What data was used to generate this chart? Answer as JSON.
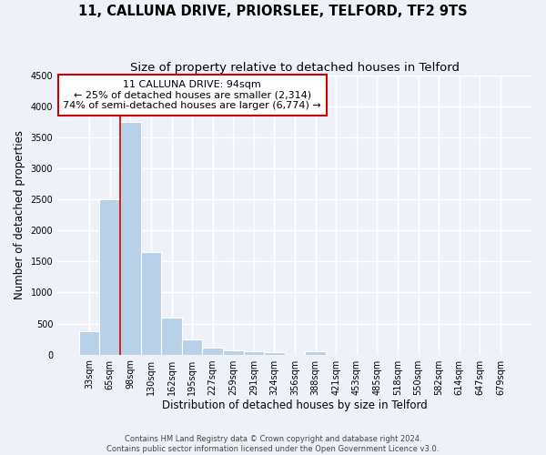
{
  "title": "11, CALLUNA DRIVE, PRIORSLEE, TELFORD, TF2 9TS",
  "subtitle": "Size of property relative to detached houses in Telford",
  "xlabel": "Distribution of detached houses by size in Telford",
  "ylabel": "Number of detached properties",
  "bin_labels": [
    "33sqm",
    "65sqm",
    "98sqm",
    "130sqm",
    "162sqm",
    "195sqm",
    "227sqm",
    "259sqm",
    "291sqm",
    "324sqm",
    "356sqm",
    "388sqm",
    "421sqm",
    "453sqm",
    "485sqm",
    "518sqm",
    "550sqm",
    "582sqm",
    "614sqm",
    "647sqm",
    "679sqm"
  ],
  "bin_values": [
    380,
    2500,
    3750,
    1650,
    600,
    240,
    110,
    60,
    55,
    45,
    0,
    50,
    0,
    0,
    0,
    0,
    0,
    0,
    0,
    0,
    0
  ],
  "bar_color": "#b8d0e8",
  "bar_edge_color": "#b8d0e8",
  "vline_color": "#cc0000",
  "vline_x_index": 2,
  "annotation_line1": "11 CALLUNA DRIVE: 94sqm",
  "annotation_line2": "← 25% of detached houses are smaller (2,314)",
  "annotation_line3": "74% of semi-detached houses are larger (6,774) →",
  "annotation_box_color": "#cc0000",
  "annotation_box_facecolor": "white",
  "ylim": [
    0,
    4500
  ],
  "yticks": [
    0,
    500,
    1000,
    1500,
    2000,
    2500,
    3000,
    3500,
    4000,
    4500
  ],
  "footer_line1": "Contains HM Land Registry data © Crown copyright and database right 2024.",
  "footer_line2": "Contains public sector information licensed under the Open Government Licence v3.0.",
  "background_color": "#eef2f8",
  "plot_background_color": "#eef2f8",
  "grid_color": "white",
  "title_fontsize": 10.5,
  "subtitle_fontsize": 9.5,
  "axis_label_fontsize": 8.5,
  "tick_fontsize": 7,
  "annotation_fontsize": 8,
  "footer_fontsize": 6
}
